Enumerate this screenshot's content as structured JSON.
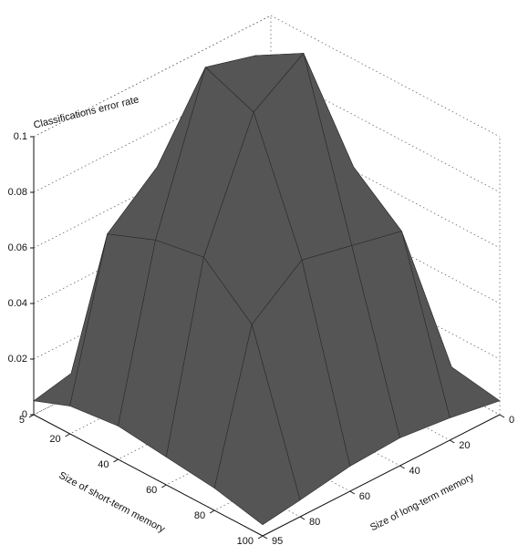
{
  "chart_data": {
    "type": "surface",
    "xlabel": "Size of short-term memory",
    "ylabel": "Size of long-term memory",
    "zlabel": "Classifications error rate",
    "x": [
      5,
      20,
      40,
      60,
      80,
      100
    ],
    "y": [
      0,
      20,
      40,
      60,
      80,
      95
    ],
    "z": [
      [
        0.005,
        0.008,
        0.01,
        0.012,
        0.008,
        0.005
      ],
      [
        0.008,
        0.07,
        0.075,
        0.08,
        0.065,
        0.01
      ],
      [
        0.01,
        0.078,
        0.12,
        0.125,
        0.072,
        0.012
      ],
      [
        0.012,
        0.08,
        0.13,
        0.118,
        0.075,
        0.01
      ],
      [
        0.008,
        0.066,
        0.07,
        0.074,
        0.06,
        0.008
      ],
      [
        0.005,
        0.008,
        0.01,
        0.009,
        0.006,
        0.004
      ]
    ],
    "color": "#555555",
    "xlim": [
      5,
      100
    ],
    "xticks": [
      5,
      20,
      40,
      60,
      80,
      100
    ],
    "ylim": [
      0,
      95
    ],
    "yticks": [
      0,
      20,
      40,
      60,
      80,
      95
    ],
    "zlim": [
      0,
      0.1
    ],
    "zticks": [
      0,
      0.02,
      0.04,
      0.06,
      0.08,
      0.1
    ],
    "grid": true
  }
}
